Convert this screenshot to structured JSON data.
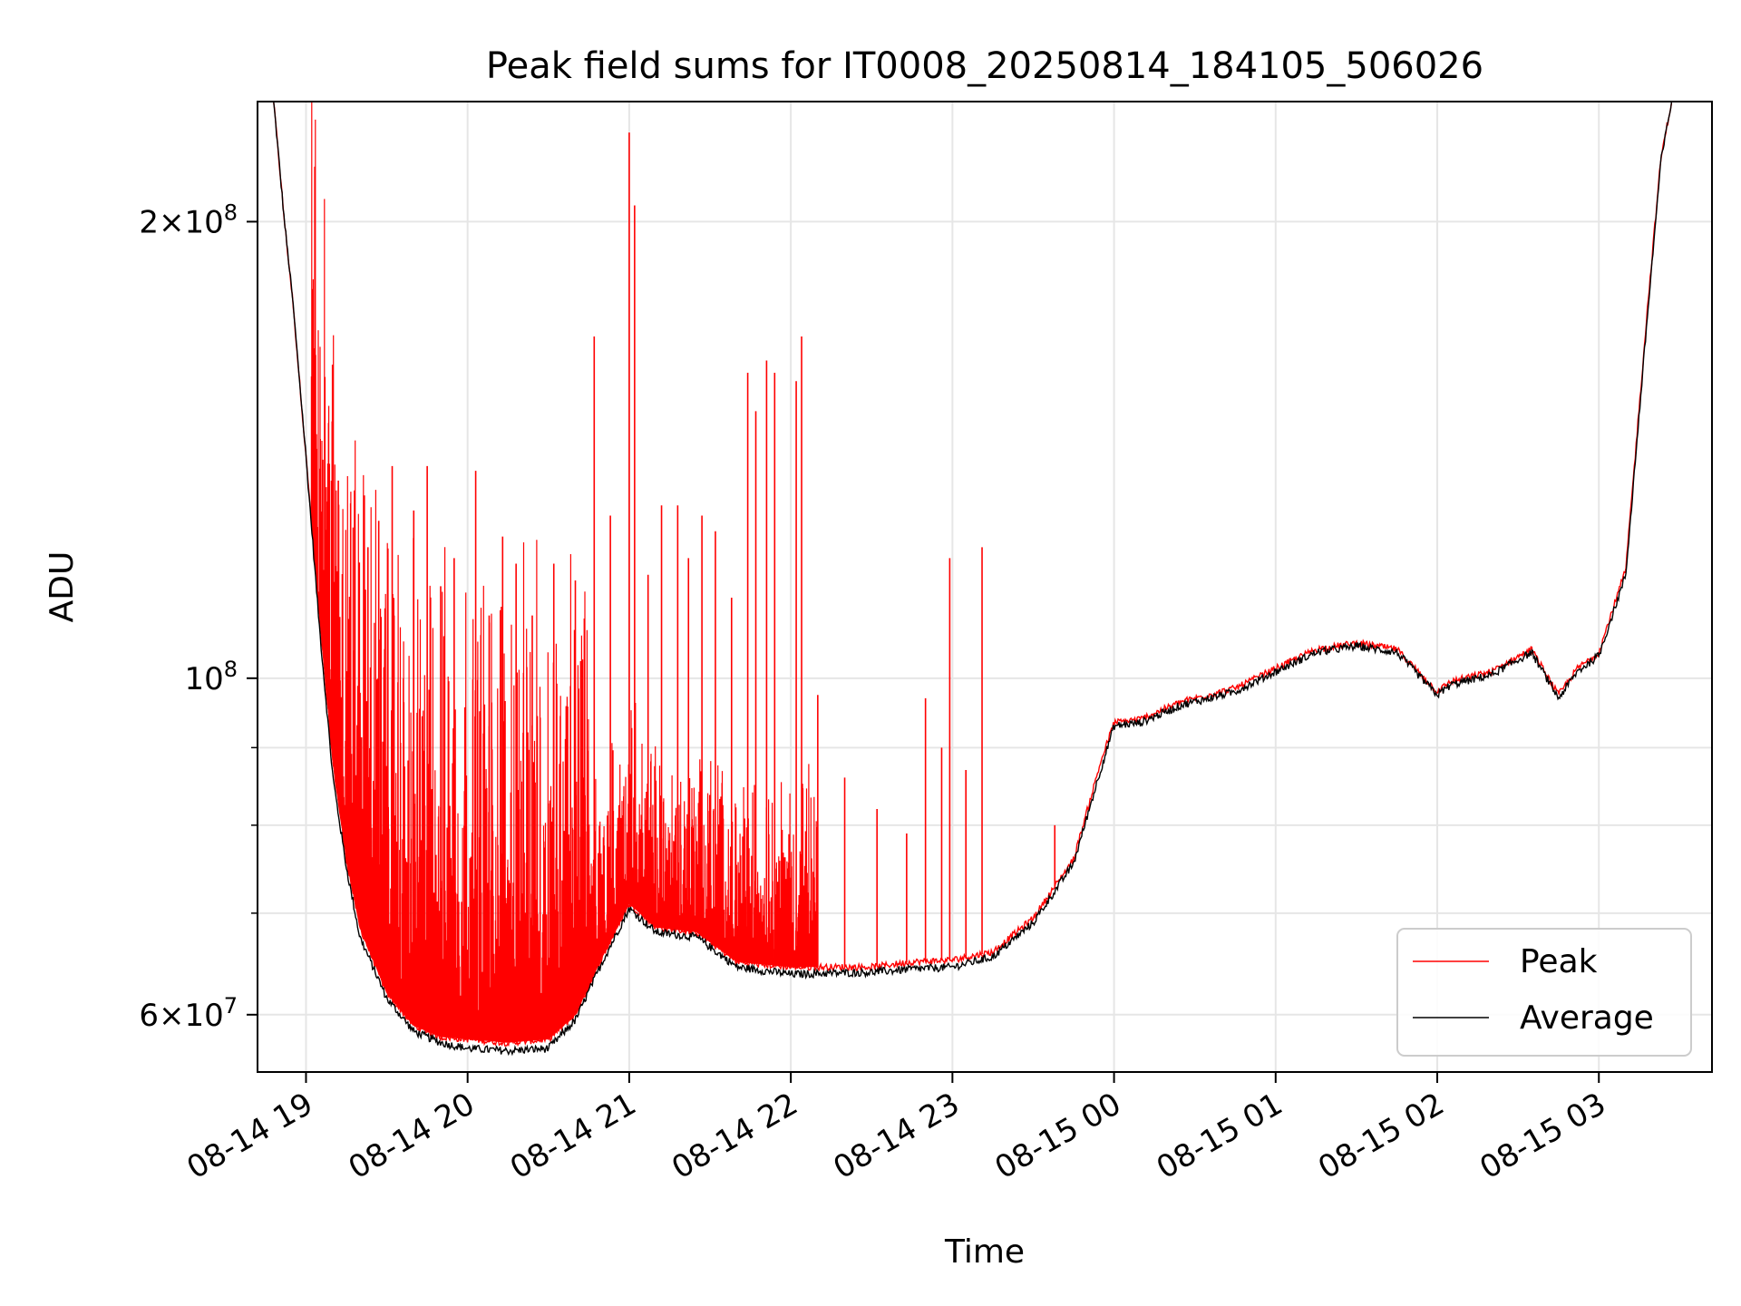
{
  "chart_data": {
    "type": "line",
    "title": "Peak field sums for IT0008_20250814_184105_506026",
    "xlabel": "Time",
    "ylabel": "ADU",
    "y_scale": "log",
    "x_range": [
      "2025-08-14 18:42",
      "2025-08-15 03:42"
    ],
    "ylim": [
      55000000,
      240000000
    ],
    "x_ticks": [
      {
        "label": "08-14 19",
        "time": "2025-08-14 19:00"
      },
      {
        "label": "08-14 20",
        "time": "2025-08-14 20:00"
      },
      {
        "label": "08-14 21",
        "time": "2025-08-14 21:00"
      },
      {
        "label": "08-14 22",
        "time": "2025-08-14 22:00"
      },
      {
        "label": "08-14 23",
        "time": "2025-08-14 23:00"
      },
      {
        "label": "08-15 00",
        "time": "2025-08-15 00:00"
      },
      {
        "label": "08-15 01",
        "time": "2025-08-15 01:00"
      },
      {
        "label": "08-15 02",
        "time": "2025-08-15 02:00"
      },
      {
        "label": "08-15 03",
        "time": "2025-08-15 03:00"
      }
    ],
    "y_major_ticks": [
      {
        "value": 60000000,
        "mantissa": "6",
        "exponent": "7"
      },
      {
        "value": 100000000,
        "mantissa": "",
        "exponent": "8"
      },
      {
        "value": 200000000,
        "mantissa": "2",
        "exponent": "8"
      }
    ],
    "y_minor_ticks": [
      70000000,
      80000000,
      90000000
    ],
    "grid": true,
    "legend_position": "bottom-right",
    "series": [
      {
        "name": "Peak",
        "color": "#ff0000",
        "baseline": [
          [
            "2025-08-14 18:48",
            240000000
          ],
          [
            "2025-08-14 18:52",
            200000000
          ],
          [
            "2025-08-14 18:55",
            178000000
          ],
          [
            "2025-08-14 19:00",
            140000000
          ],
          [
            "2025-08-14 19:05",
            110000000
          ],
          [
            "2025-08-14 19:10",
            88000000
          ],
          [
            "2025-08-14 19:15",
            76000000
          ],
          [
            "2025-08-14 19:20",
            68500000
          ],
          [
            "2025-08-14 19:30",
            62000000
          ],
          [
            "2025-08-14 19:40",
            59000000
          ],
          [
            "2025-08-14 19:50",
            58000000
          ],
          [
            "2025-08-14 20:00",
            57800000
          ],
          [
            "2025-08-14 20:15",
            57500000
          ],
          [
            "2025-08-14 20:30",
            57800000
          ],
          [
            "2025-08-14 20:40",
            60000000
          ],
          [
            "2025-08-14 20:50",
            65500000
          ],
          [
            "2025-08-14 21:00",
            71000000
          ],
          [
            "2025-08-14 21:10",
            68500000
          ],
          [
            "2025-08-14 21:25",
            68000000
          ],
          [
            "2025-08-14 21:40",
            65000000
          ],
          [
            "2025-08-14 22:00",
            64500000
          ],
          [
            "2025-08-14 22:30",
            64500000
          ],
          [
            "2025-08-14 22:45",
            65000000
          ],
          [
            "2025-08-14 23:00",
            65200000
          ],
          [
            "2025-08-14 23:15",
            66000000
          ],
          [
            "2025-08-14 23:30",
            69500000
          ],
          [
            "2025-08-14 23:45",
            76000000
          ],
          [
            "2025-08-14 23:55",
            88000000
          ],
          [
            "2025-08-15 00:00",
            93500000
          ],
          [
            "2025-08-15 00:10",
            94000000
          ],
          [
            "2025-08-15 00:25",
            96500000
          ],
          [
            "2025-08-15 00:45",
            98500000
          ],
          [
            "2025-08-15 01:00",
            101500000
          ],
          [
            "2025-08-15 01:15",
            104500000
          ],
          [
            "2025-08-15 01:30",
            105500000
          ],
          [
            "2025-08-15 01:45",
            104500000
          ],
          [
            "2025-08-15 02:00",
            98000000
          ],
          [
            "2025-08-15 02:05",
            99500000
          ],
          [
            "2025-08-15 02:20",
            101000000
          ],
          [
            "2025-08-15 02:35",
            104500000
          ],
          [
            "2025-08-15 02:45",
            97500000
          ],
          [
            "2025-08-15 02:52",
            101500000
          ],
          [
            "2025-08-15 03:00",
            104000000
          ],
          [
            "2025-08-15 03:10",
            118000000
          ],
          [
            "2025-08-15 03:18",
            175000000
          ],
          [
            "2025-08-15 03:23",
            220000000
          ],
          [
            "2025-08-15 03:27",
            240000000
          ]
        ],
        "spikes": [
          [
            "2025-08-14 19:03",
            165000000
          ],
          [
            "2025-08-14 19:07",
            158000000
          ],
          [
            "2025-08-14 19:12",
            135000000
          ],
          [
            "2025-08-14 19:18",
            133000000
          ],
          [
            "2025-08-14 19:23",
            122000000
          ],
          [
            "2025-08-14 19:27",
            127000000
          ],
          [
            "2025-08-14 19:32",
            138000000
          ],
          [
            "2025-08-14 19:40",
            129000000
          ],
          [
            "2025-08-14 19:45",
            138000000
          ],
          [
            "2025-08-14 19:50",
            115000000
          ],
          [
            "2025-08-14 19:55",
            120000000
          ],
          [
            "2025-08-14 20:03",
            137000000
          ],
          [
            "2025-08-14 20:08",
            110000000
          ],
          [
            "2025-08-14 20:13",
            124000000
          ],
          [
            "2025-08-14 20:18",
            119000000
          ],
          [
            "2025-08-14 20:24",
            110000000
          ],
          [
            "2025-08-14 20:32",
            119000000
          ],
          [
            "2025-08-14 20:40",
            116000000
          ],
          [
            "2025-08-14 20:47",
            168000000
          ],
          [
            "2025-08-14 20:53",
            128000000
          ],
          [
            "2025-08-14 21:00",
            229000000
          ],
          [
            "2025-08-14 21:02",
            205000000
          ],
          [
            "2025-08-14 21:07",
            117000000
          ],
          [
            "2025-08-14 21:12",
            130000000
          ],
          [
            "2025-08-14 21:18",
            130000000
          ],
          [
            "2025-08-14 21:22",
            120000000
          ],
          [
            "2025-08-14 21:27",
            128000000
          ],
          [
            "2025-08-14 21:32",
            125000000
          ],
          [
            "2025-08-14 21:38",
            113000000
          ],
          [
            "2025-08-14 21:44",
            159000000
          ],
          [
            "2025-08-14 21:47",
            150000000
          ],
          [
            "2025-08-14 21:51",
            162000000
          ],
          [
            "2025-08-14 21:54",
            159000000
          ],
          [
            "2025-08-14 22:02",
            157000000
          ],
          [
            "2025-08-14 22:04",
            168000000
          ],
          [
            "2025-08-14 22:10",
            97500000
          ],
          [
            "2025-08-14 22:20",
            86000000
          ],
          [
            "2025-08-14 22:32",
            82000000
          ],
          [
            "2025-08-14 22:43",
            79000000
          ],
          [
            "2025-08-14 22:50",
            97000000
          ],
          [
            "2025-08-14 22:56",
            90000000
          ],
          [
            "2025-08-14 22:59",
            120000000
          ],
          [
            "2025-08-14 23:05",
            87000000
          ],
          [
            "2025-08-14 23:11",
            122000000
          ],
          [
            "2025-08-14 23:38",
            80000000
          ]
        ]
      },
      {
        "name": "Average",
        "color": "#000000",
        "values": [
          [
            "2025-08-14 18:48",
            240000000
          ],
          [
            "2025-08-14 18:52",
            200000000
          ],
          [
            "2025-08-14 18:55",
            178000000
          ],
          [
            "2025-08-14 19:00",
            140000000
          ],
          [
            "2025-08-14 19:05",
            108000000
          ],
          [
            "2025-08-14 19:10",
            86000000
          ],
          [
            "2025-08-14 19:15",
            75000000
          ],
          [
            "2025-08-14 19:20",
            67500000
          ],
          [
            "2025-08-14 19:30",
            61500000
          ],
          [
            "2025-08-14 19:40",
            58500000
          ],
          [
            "2025-08-14 19:50",
            57500000
          ],
          [
            "2025-08-14 20:00",
            57000000
          ],
          [
            "2025-08-14 20:15",
            56800000
          ],
          [
            "2025-08-14 20:30",
            57000000
          ],
          [
            "2025-08-14 20:40",
            59500000
          ],
          [
            "2025-08-14 20:50",
            65000000
          ],
          [
            "2025-08-14 21:00",
            70500000
          ],
          [
            "2025-08-14 21:10",
            68000000
          ],
          [
            "2025-08-14 21:25",
            67500000
          ],
          [
            "2025-08-14 21:40",
            64500000
          ],
          [
            "2025-08-14 22:00",
            63800000
          ],
          [
            "2025-08-14 22:30",
            64000000
          ],
          [
            "2025-08-14 22:45",
            64300000
          ],
          [
            "2025-08-14 23:00",
            64500000
          ],
          [
            "2025-08-14 23:15",
            65500000
          ],
          [
            "2025-08-14 23:30",
            69000000
          ],
          [
            "2025-08-14 23:45",
            75500000
          ],
          [
            "2025-08-14 23:55",
            87000000
          ],
          [
            "2025-08-15 00:00",
            93000000
          ],
          [
            "2025-08-15 00:10",
            93500000
          ],
          [
            "2025-08-15 00:25",
            96000000
          ],
          [
            "2025-08-15 00:45",
            98000000
          ],
          [
            "2025-08-15 01:00",
            101000000
          ],
          [
            "2025-08-15 01:15",
            104000000
          ],
          [
            "2025-08-15 01:30",
            105000000
          ],
          [
            "2025-08-15 01:45",
            104000000
          ],
          [
            "2025-08-15 02:00",
            97500000
          ],
          [
            "2025-08-15 02:05",
            99000000
          ],
          [
            "2025-08-15 02:20",
            100500000
          ],
          [
            "2025-08-15 02:35",
            104000000
          ],
          [
            "2025-08-15 02:45",
            97000000
          ],
          [
            "2025-08-15 02:52",
            101000000
          ],
          [
            "2025-08-15 03:00",
            103500000
          ],
          [
            "2025-08-15 03:10",
            117000000
          ],
          [
            "2025-08-15 03:18",
            173000000
          ],
          [
            "2025-08-15 03:23",
            219000000
          ],
          [
            "2025-08-15 03:27",
            240000000
          ]
        ]
      }
    ]
  }
}
